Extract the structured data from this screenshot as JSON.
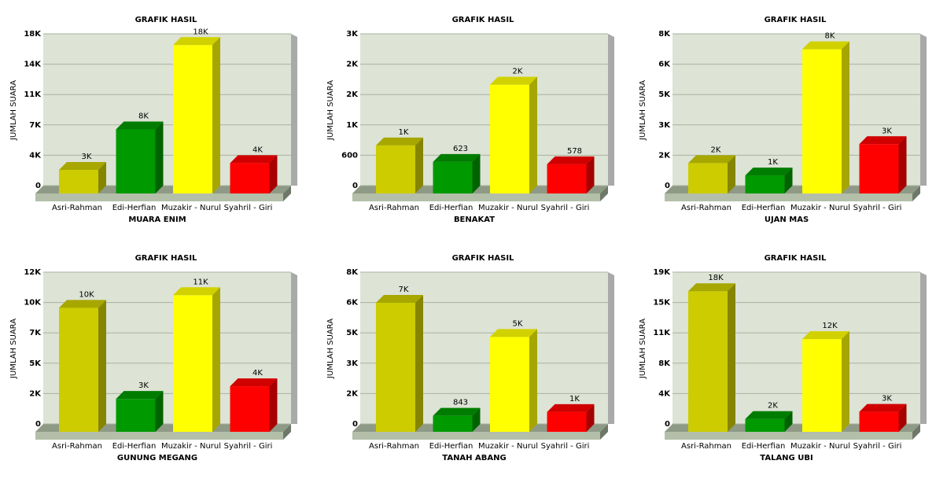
{
  "chart_data": [
    {
      "type": "bar",
      "title": "GRAFIK HASIL",
      "y_label": "JUMLAH SUARA",
      "x_label": "MUARA ENIM",
      "categories": [
        "Asri-Rahman",
        "Edi-Herfian",
        "Muzakir - Nurul",
        "Syahril - Giri"
      ],
      "values": [
        2800,
        7600,
        17600,
        3600
      ],
      "value_labels": [
        "3K",
        "8K",
        "18K",
        "4K"
      ],
      "colors": [
        "#cccc00",
        "#009900",
        "#ffff00",
        "#ff0000"
      ],
      "ylim": [
        0,
        18000
      ],
      "yticks": [
        0,
        {
          "value": 3600,
          "label": "4K"
        },
        {
          "value": 7200,
          "label": "7K"
        },
        {
          "value": 10800,
          "label": "11K"
        },
        {
          "value": 14400,
          "label": "14K"
        },
        {
          "value": 18000,
          "label": "18K"
        }
      ],
      "grid": true
    },
    {
      "type": "bar",
      "title": "GRAFIK HASIL",
      "y_label": "JUMLAH SUARA",
      "x_label": "BENAKAT",
      "categories": [
        "Asri-Rahman",
        "Edi-Herfian",
        "Muzakir - Nurul",
        "Syahril - Giri"
      ],
      "values": [
        950,
        623,
        2150,
        578
      ],
      "value_labels": [
        "1K",
        "623",
        "2K",
        "578"
      ],
      "colors": [
        "#cccc00",
        "#009900",
        "#ffff00",
        "#ff0000"
      ],
      "ylim": [
        0,
        3000
      ],
      "yticks": [
        0,
        600,
        {
          "value": 1200,
          "label": "1K"
        },
        {
          "value": 1800,
          "label": "2K"
        },
        {
          "value": 2400,
          "label": "2K"
        },
        {
          "value": 3000,
          "label": "3K"
        }
      ],
      "grid": true
    },
    {
      "type": "bar",
      "title": "GRAFIK HASIL",
      "y_label": "JUMLAH SUARA",
      "x_label": "UJAN MAS",
      "categories": [
        "Asri-Rahman",
        "Edi-Herfian",
        "Muzakir - Nurul",
        "Syahril - Giri"
      ],
      "values": [
        1600,
        950,
        7600,
        2600
      ],
      "value_labels": [
        "2K",
        "1K",
        "8K",
        "3K"
      ],
      "colors": [
        "#cccc00",
        "#009900",
        "#ffff00",
        "#ff0000"
      ],
      "ylim": [
        0,
        8000
      ],
      "yticks": [
        0,
        {
          "value": 1600,
          "label": "2K"
        },
        {
          "value": 3200,
          "label": "3K"
        },
        {
          "value": 4800,
          "label": "5K"
        },
        {
          "value": 6400,
          "label": "6K"
        },
        {
          "value": 8000,
          "label": "8K"
        }
      ],
      "grid": true
    },
    {
      "type": "bar",
      "title": "GRAFIK HASIL",
      "y_label": "JUMLAH SUARA",
      "x_label": "GUNUNG MEGANG",
      "categories": [
        "Asri-Rahman",
        "Edi-Herfian",
        "Muzakir - Nurul",
        "Syahril - Giri"
      ],
      "values": [
        9800,
        2600,
        10800,
        3600
      ],
      "value_labels": [
        "10K",
        "3K",
        "11K",
        "4K"
      ],
      "colors": [
        "#cccc00",
        "#009900",
        "#ffff00",
        "#ff0000"
      ],
      "ylim": [
        0,
        12000
      ],
      "yticks": [
        0,
        {
          "value": 2400,
          "label": "2K"
        },
        {
          "value": 4800,
          "label": "5K"
        },
        {
          "value": 7200,
          "label": "7K"
        },
        {
          "value": 9600,
          "label": "10K"
        },
        {
          "value": 12000,
          "label": "12K"
        }
      ],
      "grid": true
    },
    {
      "type": "bar",
      "title": "GRAFIK HASIL",
      "y_label": "JUMLAH SUARA",
      "x_label": "TANAH ABANG",
      "categories": [
        "Asri-Rahman",
        "Edi-Herfian",
        "Muzakir - Nurul",
        "Syahril - Giri"
      ],
      "values": [
        6800,
        843,
        5000,
        1040
      ],
      "value_labels": [
        "7K",
        "843",
        "5K",
        "1K"
      ],
      "colors": [
        "#cccc00",
        "#009900",
        "#ffff00",
        "#ff0000"
      ],
      "ylim": [
        0,
        8000
      ],
      "yticks": [
        0,
        {
          "value": 1600,
          "label": "2K"
        },
        {
          "value": 3200,
          "label": "3K"
        },
        {
          "value": 4800,
          "label": "5K"
        },
        {
          "value": 6400,
          "label": "6K"
        },
        {
          "value": 8000,
          "label": "8K"
        }
      ],
      "grid": true
    },
    {
      "type": "bar",
      "title": "GRAFIK HASIL",
      "y_label": "JUMLAH SUARA",
      "x_label": "TALANG UBI",
      "categories": [
        "Asri-Rahman",
        "Edi-Herfian",
        "Muzakir - Nurul",
        "Syahril - Giri"
      ],
      "values": [
        17600,
        1600,
        11600,
        2500
      ],
      "value_labels": [
        "18K",
        "2K",
        "12K",
        "3K"
      ],
      "colors": [
        "#cccc00",
        "#009900",
        "#ffff00",
        "#ff0000"
      ],
      "ylim": [
        0,
        19000
      ],
      "yticks": [
        0,
        {
          "value": 3800,
          "label": "4K"
        },
        {
          "value": 7600,
          "label": "8K"
        },
        {
          "value": 11400,
          "label": "11K"
        },
        {
          "value": 15200,
          "label": "15K"
        },
        {
          "value": 19000,
          "label": "19K"
        }
      ],
      "grid": true
    }
  ]
}
